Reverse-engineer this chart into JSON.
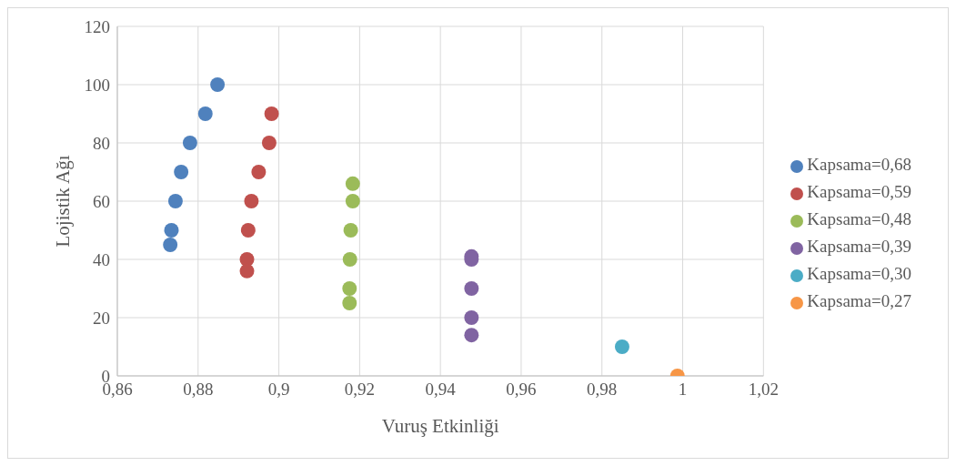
{
  "chart_data": {
    "type": "scatter",
    "xlabel": "Vuruş Etkinliği",
    "ylabel": "Lojistik Ağı",
    "xlim": [
      0.86,
      1.02
    ],
    "xticks": [
      {
        "value": 0.86,
        "label": "0,86"
      },
      {
        "value": 0.88,
        "label": "0,88"
      },
      {
        "value": 0.9,
        "label": "0,9"
      },
      {
        "value": 0.92,
        "label": "0,92"
      },
      {
        "value": 0.94,
        "label": "0,94"
      },
      {
        "value": 0.96,
        "label": "0,96"
      },
      {
        "value": 0.98,
        "label": "0,98"
      },
      {
        "value": 1,
        "label": "1"
      },
      {
        "value": 1.02,
        "label": "1,02"
      }
    ],
    "ylim": [
      0,
      120
    ],
    "yticks": [
      0,
      20,
      40,
      60,
      80,
      100,
      120
    ],
    "grid": true,
    "legend": "right",
    "marker": "circle",
    "series": [
      {
        "name": "Kapsama=0,68",
        "color": "#4f81bd",
        "x": [
          0.8848,
          0.8818,
          0.878,
          0.8758,
          0.8744,
          0.8734,
          0.8731
        ],
        "values": [
          100,
          90,
          80,
          70,
          60,
          50,
          45
        ]
      },
      {
        "name": "Kapsama=0,59",
        "color": "#c0504d",
        "x": [
          0.8982,
          0.8976,
          0.895,
          0.8932,
          0.8924,
          0.8921,
          0.8921
        ],
        "values": [
          90,
          80,
          70,
          60,
          50,
          40,
          36
        ]
      },
      {
        "name": "Kapsama=0,48",
        "color": "#9bbb59",
        "x": [
          0.9183,
          0.9183,
          0.9178,
          0.9176,
          0.9175,
          0.9175
        ],
        "values": [
          66,
          60,
          50,
          40,
          30,
          25
        ]
      },
      {
        "name": "Kapsama=0,39",
        "color": "#8064a2",
        "x": [
          0.9477,
          0.9477,
          0.9477,
          0.9477,
          0.9477
        ],
        "values": [
          41,
          40,
          30,
          20,
          14
        ]
      },
      {
        "name": "Kapsama=0,30",
        "color": "#4bacc6",
        "x": [
          0.985
        ],
        "values": [
          10
        ]
      },
      {
        "name": "Kapsama=0,27",
        "color": "#f79646",
        "x": [
          0.9987
        ],
        "values": [
          0
        ]
      }
    ]
  }
}
